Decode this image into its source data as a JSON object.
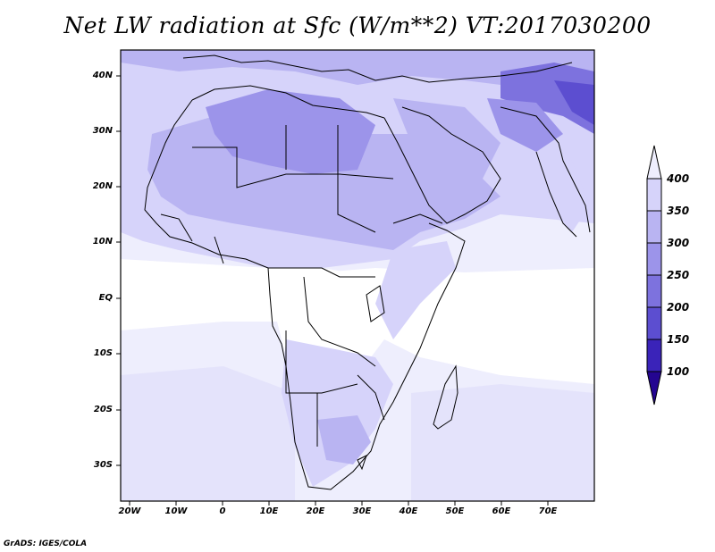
{
  "title": "Net LW radiation at Sfc (W/m**2) VT:2017030200",
  "footer": "GrADS: IGES/COLA",
  "axes": {
    "lat_ticks": [
      "40N",
      "30N",
      "20N",
      "10N",
      "EQ",
      "10S",
      "20S",
      "30S"
    ],
    "lon_ticks": [
      "20W",
      "10W",
      "0",
      "10E",
      "20E",
      "30E",
      "40E",
      "50E",
      "60E",
      "70E"
    ]
  },
  "legend": {
    "labels": [
      "400",
      "350",
      "300",
      "250",
      "200",
      "150",
      "100"
    ],
    "colors": [
      "#eeeefd",
      "#d6d3fa",
      "#b9b4f2",
      "#9c94ea",
      "#7d72de",
      "#5c4ed0",
      "#3a23b9",
      "#240591"
    ]
  }
}
